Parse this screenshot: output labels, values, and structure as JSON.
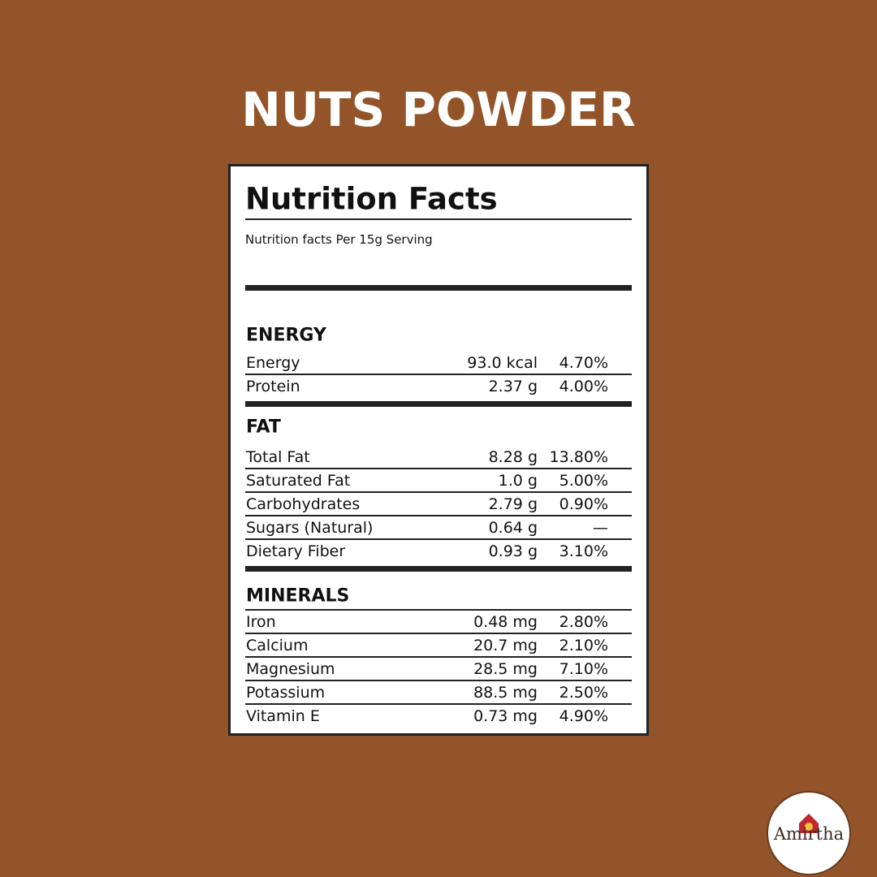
{
  "title": "NUTS POWDER",
  "label": {
    "heading": "Nutrition Facts",
    "serving": "Nutrition facts Per 15g Serving",
    "sections": [
      {
        "name": "ENERGY",
        "rows": [
          {
            "name": "Energy",
            "amount": "93.0 kcal",
            "dv": "4.70%"
          },
          {
            "name": "Protein",
            "amount": "2.37 g",
            "dv": "4.00%"
          }
        ]
      },
      {
        "name": "FAT",
        "rows": [
          {
            "name": "Total Fat",
            "amount": "8.28 g",
            "dv": "13.80%"
          },
          {
            "name": "Saturated Fat",
            "amount": "1.0 g",
            "dv": "5.00%"
          },
          {
            "name": "Carbohydrates",
            "amount": "2.79 g",
            "dv": "0.90%"
          },
          {
            "name": "Sugars (Natural)",
            "amount": "0.64 g",
            "dv": "—"
          },
          {
            "name": "Dietary Fiber",
            "amount": "0.93 g",
            "dv": "3.10%"
          }
        ]
      },
      {
        "name": "MINERALS",
        "rows": [
          {
            "name": "Iron",
            "amount": "0.48 mg",
            "dv": "2.80%"
          },
          {
            "name": "Calcium",
            "amount": "20.7 mg",
            "dv": "2.10%"
          },
          {
            "name": "Magnesium",
            "amount": "28.5 mg",
            "dv": "7.10%"
          },
          {
            "name": "Potassium",
            "amount": "88.5 mg",
            "dv": "2.50%"
          },
          {
            "name": "Vitamin E",
            "amount": "0.73 mg",
            "dv": "4.90%"
          }
        ]
      }
    ]
  },
  "logo": {
    "name": "Amirtha"
  }
}
